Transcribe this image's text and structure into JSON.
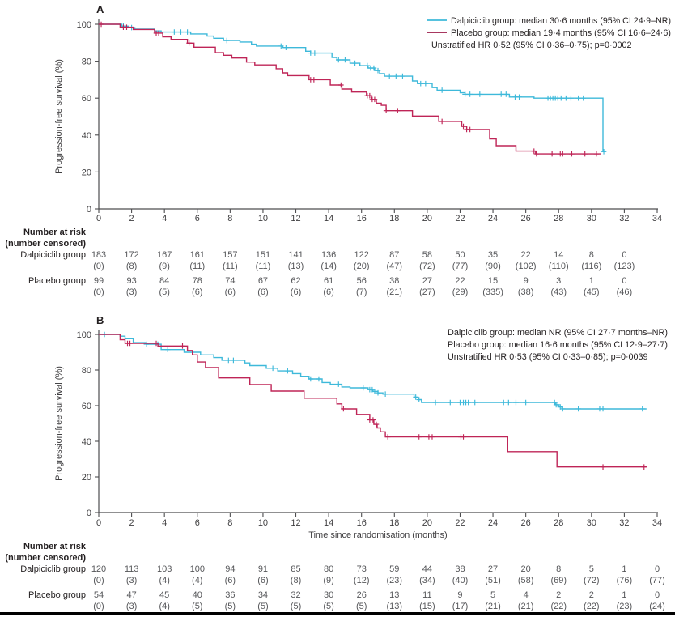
{
  "colors": {
    "dalpiciclib": "#3eb9da",
    "placebo_curve": "#bf2557",
    "placebo_legend": "#9b1b49",
    "axis": "#4d4d4f",
    "tick_text": "#3f3e40",
    "table_text": "#555659",
    "header_text": "#231f20",
    "bottom_rule": "#000000"
  },
  "chart_data": [
    {
      "panel": "A",
      "type": "line",
      "subtype": "kaplan-meier-step",
      "title": "",
      "xlabel": "",
      "ylabel": "Progression-free survival (%)",
      "xlim": [
        0,
        34
      ],
      "ylim": [
        0,
        100
      ],
      "xticks": [
        0,
        2,
        4,
        6,
        8,
        10,
        12,
        14,
        16,
        18,
        20,
        22,
        24,
        26,
        28,
        30,
        32,
        34
      ],
      "yticks": [
        0,
        20,
        40,
        60,
        80,
        100
      ],
      "grid": false,
      "legend_position": "top-right",
      "legend": [
        {
          "swatch": "dalpiciclib",
          "text": "Dalpiciclib group: median 30·6 months (95% CI 24·9–NR)"
        },
        {
          "swatch": "placebo",
          "text": "Placebo group: median 19·4 months (95% CI 16·6–24·6)"
        },
        {
          "swatch": null,
          "text": "Unstratified HR 0·52 (95% CI 0·36–0·75); p=0·0002"
        }
      ],
      "series": [
        {
          "name": "Dalpiciclib group",
          "color_key": "dalpiciclib",
          "steps": [
            [
              0,
              100
            ],
            [
              1.4,
              99
            ],
            [
              1.8,
              98.2
            ],
            [
              2.2,
              97.4
            ],
            [
              3.4,
              96.4
            ],
            [
              3.8,
              95.8
            ],
            [
              5.6,
              94.8
            ],
            [
              6.6,
              93.6
            ],
            [
              7.0,
              92.4
            ],
            [
              7.6,
              91.2
            ],
            [
              8.6,
              90.4
            ],
            [
              9.3,
              89.2
            ],
            [
              9.6,
              88.2
            ],
            [
              11.2,
              87.4
            ],
            [
              12.6,
              85.4
            ],
            [
              12.9,
              84.4
            ],
            [
              14.2,
              82
            ],
            [
              14.5,
              80.7
            ],
            [
              15.3,
              78.9
            ],
            [
              15.9,
              77.6
            ],
            [
              16.4,
              76.3
            ],
            [
              16.8,
              74.9
            ],
            [
              17.1,
              73.3
            ],
            [
              17.4,
              71.9
            ],
            [
              19.1,
              69.3
            ],
            [
              19.4,
              67.9
            ],
            [
              20.3,
              65.7
            ],
            [
              20.6,
              64.3
            ],
            [
              22.0,
              62.9
            ],
            [
              22.3,
              62.1
            ],
            [
              25.0,
              60.6
            ],
            [
              26.5,
              60.0
            ],
            [
              30.7,
              31
            ],
            [
              30.85,
              31
            ]
          ],
          "censors": [
            1.5,
            2.0,
            4.6,
            5.0,
            5.4,
            7.8,
            11.1,
            11.4,
            12.9,
            13.15,
            14.6,
            15.0,
            15.6,
            16.35,
            16.55,
            16.75,
            17.0,
            17.7,
            18.1,
            18.5,
            19.6,
            19.9,
            20.9,
            22.3,
            22.6,
            23.2,
            24.5,
            24.8,
            25.35,
            25.6,
            27.35,
            27.5,
            27.65,
            27.8,
            27.95,
            28.15,
            28.45,
            28.75,
            29.2,
            29.5,
            30.75
          ]
        },
        {
          "name": "Placebo group",
          "color_key": "placebo_curve",
          "steps": [
            [
              0,
              100
            ],
            [
              1.3,
              98.4
            ],
            [
              2.1,
              97.2
            ],
            [
              3.4,
              95.2
            ],
            [
              3.9,
              93.2
            ],
            [
              4.4,
              91.8
            ],
            [
              5.4,
              89.8
            ],
            [
              5.8,
              87.6
            ],
            [
              7.1,
              84.6
            ],
            [
              7.6,
              83.2
            ],
            [
              8.1,
              81.7
            ],
            [
              9.0,
              79.5
            ],
            [
              9.5,
              78.0
            ],
            [
              10.8,
              75.9
            ],
            [
              11.2,
              73.7
            ],
            [
              11.5,
              72.2
            ],
            [
              12.8,
              70.0
            ],
            [
              14.1,
              67.1
            ],
            [
              14.8,
              64.9
            ],
            [
              15.4,
              63.3
            ],
            [
              16.3,
              61.3
            ],
            [
              16.6,
              59.3
            ],
            [
              16.9,
              57.3
            ],
            [
              17.2,
              56.1
            ],
            [
              17.5,
              53.2
            ],
            [
              19.1,
              50.3
            ],
            [
              20.7,
              47.4
            ],
            [
              22.1,
              44.7
            ],
            [
              22.4,
              43.0
            ],
            [
              23.8,
              37.9
            ],
            [
              24.2,
              34.2
            ],
            [
              25.4,
              31.3
            ],
            [
              26.6,
              29.8
            ],
            [
              30.6,
              29.8
            ]
          ],
          "censors": [
            0.15,
            1.5,
            1.7,
            3.5,
            3.65,
            5.5,
            12.9,
            13.1,
            14.75,
            16.35,
            16.5,
            16.65,
            16.8,
            17.5,
            18.2,
            20.9,
            22.2,
            22.4,
            22.6,
            26.5,
            26.65,
            27.6,
            28.1,
            28.25,
            28.8,
            29.6,
            30.3
          ]
        }
      ]
    },
    {
      "panel": "B",
      "type": "line",
      "subtype": "kaplan-meier-step",
      "title": "",
      "xlabel": "Time since randomisation (months)",
      "ylabel": "Progression-free survival (%)",
      "xlim": [
        0,
        34
      ],
      "ylim": [
        0,
        100
      ],
      "xticks": [
        0,
        2,
        4,
        6,
        8,
        10,
        12,
        14,
        16,
        18,
        20,
        22,
        24,
        26,
        28,
        30,
        32,
        34
      ],
      "yticks": [
        0,
        20,
        40,
        60,
        80,
        100
      ],
      "grid": false,
      "legend_position": "top-right",
      "legend": [
        {
          "swatch": null,
          "text": "Dalpiciclib group: median NR (95% CI 27·7 months–NR)"
        },
        {
          "swatch": null,
          "text": "Placebo group: median 16·6 months (95% CI 12·9–27·7)"
        },
        {
          "swatch": null,
          "text": "Unstratified HR 0·53 (95% CI 0·33–0·85); p=0·0039"
        }
      ],
      "series": [
        {
          "name": "Dalpiciclib group",
          "color_key": "dalpiciclib",
          "steps": [
            [
              0,
              100
            ],
            [
              1.3,
              99
            ],
            [
              1.6,
              97.6
            ],
            [
              2.1,
              95.4
            ],
            [
              2.9,
              94.5
            ],
            [
              3.8,
              91.5
            ],
            [
              5.2,
              90
            ],
            [
              6.2,
              88.5
            ],
            [
              7.0,
              87
            ],
            [
              7.5,
              85.5
            ],
            [
              8.9,
              84
            ],
            [
              9.2,
              82.5
            ],
            [
              10.2,
              81
            ],
            [
              10.9,
              79.5
            ],
            [
              11.8,
              78
            ],
            [
              12.3,
              76.5
            ],
            [
              12.8,
              75
            ],
            [
              13.6,
              73
            ],
            [
              14.1,
              72
            ],
            [
              14.8,
              70.5
            ],
            [
              15.3,
              70
            ],
            [
              16.4,
              69
            ],
            [
              16.7,
              68
            ],
            [
              17.0,
              67.2
            ],
            [
              17.3,
              66.5
            ],
            [
              19.2,
              64.8
            ],
            [
              19.45,
              63.4
            ],
            [
              19.65,
              61.8
            ],
            [
              27.8,
              60.5
            ],
            [
              28.0,
              59.3
            ],
            [
              28.2,
              58.2
            ],
            [
              33.35,
              58.2
            ]
          ],
          "censors": [
            0.35,
            2.9,
            3.6,
            4.2,
            7.9,
            8.2,
            10.6,
            11.5,
            12.9,
            13.4,
            14.6,
            16.1,
            16.5,
            16.65,
            16.8,
            17.0,
            17.45,
            19.3,
            19.5,
            20.5,
            21.4,
            22.0,
            22.2,
            22.35,
            22.5,
            22.9,
            24.65,
            24.95,
            25.4,
            26.0,
            27.75,
            27.85,
            27.95,
            28.1,
            28.25,
            29.2,
            30.5,
            30.7,
            33.1
          ]
        },
        {
          "name": "Placebo group",
          "color_key": "placebo_curve",
          "steps": [
            [
              0,
              100
            ],
            [
              1.3,
              97
            ],
            [
              1.6,
              95
            ],
            [
              3.6,
              93.5
            ],
            [
              5.4,
              91
            ],
            [
              5.7,
              88.5
            ],
            [
              6.0,
              84.5
            ],
            [
              6.5,
              81.4
            ],
            [
              7.3,
              75.6
            ],
            [
              9.2,
              71.8
            ],
            [
              10.5,
              68.2
            ],
            [
              12.5,
              64.2
            ],
            [
              14.5,
              61
            ],
            [
              14.8,
              58.2
            ],
            [
              15.7,
              55.1
            ],
            [
              16.5,
              52
            ],
            [
              16.75,
              49.5
            ],
            [
              16.95,
              47.5
            ],
            [
              17.15,
              45.3
            ],
            [
              17.45,
              42.5
            ],
            [
              24.9,
              34.2
            ],
            [
              27.9,
              25.6
            ],
            [
              33.35,
              25.6
            ]
          ],
          "censors": [
            1.75,
            1.9,
            3.5,
            5.1,
            14.9,
            16.5,
            16.7,
            16.9,
            17.6,
            19.5,
            20.1,
            20.3,
            22.05,
            22.2,
            30.7,
            33.2
          ]
        }
      ]
    }
  ],
  "risk_tables": [
    {
      "header_line1": "Number at risk",
      "header_line2": "(number censored)",
      "months": [
        0,
        2,
        4,
        6,
        8,
        10,
        12,
        14,
        16,
        18,
        20,
        22,
        24,
        26,
        28,
        30,
        32
      ],
      "rows": [
        {
          "label": "Dalpiciclib group",
          "at_risk": [
            183,
            172,
            167,
            161,
            157,
            151,
            141,
            136,
            122,
            87,
            58,
            50,
            35,
            22,
            14,
            8,
            0
          ],
          "censored": [
            "(0)",
            "(8)",
            "(9)",
            "(11)",
            "(11)",
            "(11)",
            "(13)",
            "(14)",
            "(20)",
            "(47)",
            "(72)",
            "(77)",
            "(90)",
            "(102)",
            "(110)",
            "(116)",
            "(123)"
          ]
        },
        {
          "label": "Placebo group",
          "at_risk": [
            99,
            93,
            84,
            78,
            74,
            67,
            62,
            61,
            56,
            38,
            27,
            22,
            15,
            9,
            3,
            1,
            0
          ],
          "censored": [
            "(0)",
            "(3)",
            "(5)",
            "(6)",
            "(6)",
            "(6)",
            "(6)",
            "(6)",
            "(7)",
            "(21)",
            "(27)",
            "(29)",
            "(335)",
            "(38)",
            "(43)",
            "(45)",
            "(46)"
          ]
        }
      ]
    },
    {
      "header_line1": "Number at risk",
      "header_line2": "(number censored)",
      "months": [
        0,
        2,
        4,
        6,
        8,
        10,
        12,
        14,
        16,
        18,
        20,
        22,
        24,
        26,
        28,
        30,
        32,
        34
      ],
      "rows": [
        {
          "label": "Dalpiciclib group",
          "at_risk": [
            120,
            113,
            103,
            100,
            94,
            91,
            85,
            80,
            73,
            59,
            44,
            38,
            27,
            20,
            8,
            5,
            1,
            0
          ],
          "censored": [
            "(0)",
            "(3)",
            "(4)",
            "(4)",
            "(6)",
            "(6)",
            "(8)",
            "(9)",
            "(12)",
            "(23)",
            "(34)",
            "(40)",
            "(51)",
            "(58)",
            "(69)",
            "(72)",
            "(76)",
            "(77)"
          ]
        },
        {
          "label": "Placebo group",
          "at_risk": [
            54,
            47,
            45,
            40,
            36,
            34,
            32,
            30,
            26,
            13,
            11,
            9,
            5,
            4,
            2,
            2,
            1,
            0
          ],
          "censored": [
            "(0)",
            "(3)",
            "(4)",
            "(5)",
            "(5)",
            "(5)",
            "(5)",
            "(5)",
            "(5)",
            "(13)",
            "(15)",
            "(17)",
            "(21)",
            "(21)",
            "(22)",
            "(22)",
            "(23)",
            "(24)"
          ]
        }
      ]
    }
  ]
}
